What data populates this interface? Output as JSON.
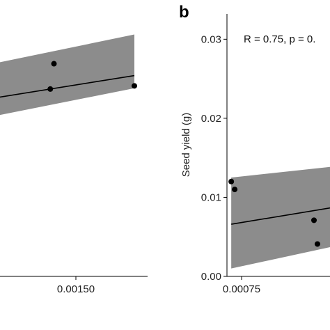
{
  "chart_data": [
    {
      "panel_label": "",
      "type": "scatter",
      "xlim": [
        0.00055,
        0.00175
      ],
      "ylim": [
        0.0,
        0.0332
      ],
      "x_ticks": [
        0.0015
      ],
      "x_tick_labels": [
        "0.00150"
      ],
      "points": [
        {
          "x": 0.00143,
          "y": 0.0237
        },
        {
          "x": 0.00144,
          "y": 0.0269
        },
        {
          "x": 0.00166,
          "y": 0.0241
        }
      ],
      "fit": {
        "x": [
          0.00055,
          0.00166
        ],
        "y": [
          0.0172,
          0.0254
        ]
      },
      "band": {
        "x": [
          0.00055,
          0.00166
        ],
        "upper": [
          0.02,
          0.0306
        ],
        "lower": [
          0.0136,
          0.0238
        ]
      },
      "annotation": ""
    },
    {
      "panel_label": "b",
      "type": "scatter",
      "xlim": [
        0.00064,
        0.00125
      ],
      "ylim": [
        0.0,
        0.0332
      ],
      "ylabel": "Seed yield (g)",
      "y_ticks": [
        0.0,
        0.01,
        0.02,
        0.03
      ],
      "y_tick_labels": [
        "0.00",
        "0.01",
        "0.02",
        "0.03"
      ],
      "x_ticks": [
        0.00075
      ],
      "x_tick_labels": [
        "0.00075"
      ],
      "points": [
        {
          "x": 0.00072,
          "y": 0.012
        },
        {
          "x": 0.00073,
          "y": 0.011
        },
        {
          "x": 0.00096,
          "y": 0.0071
        },
        {
          "x": 0.00097,
          "y": 0.0041
        }
      ],
      "fit": {
        "x": [
          0.00072,
          0.00125
        ],
        "y": [
          0.0066,
          0.0104
        ]
      },
      "band": {
        "x": [
          0.00072,
          0.00125
        ],
        "upper": [
          0.0125,
          0.015
        ],
        "lower": [
          0.001,
          0.006
        ]
      },
      "annotation": "R = 0.75, p = 0."
    }
  ]
}
